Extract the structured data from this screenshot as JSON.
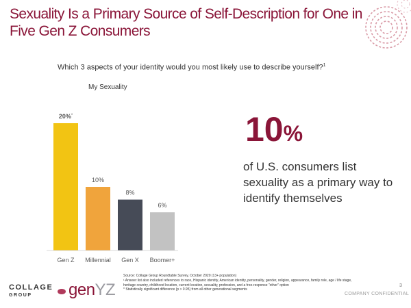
{
  "slide": {
    "title": "Sexuality Is a Primary Source of Self-Description for One in Five Gen Z Consumers",
    "question": "Which 3 aspects of your identity would you most likely use to describe yourself?",
    "question_sup": "1",
    "big_stat_number": "10",
    "big_stat_unit": "%",
    "big_stat_text": "of U.S. consumers list sexuality as a primary way to identify themselves",
    "page_number": "3",
    "confidential": "COMPANY CONFIDENTIAL"
  },
  "footnotes": [
    "Source: Collage Group Roundtable Survey, October 2020 (13+ population)",
    "¹ Answer list also included references to race, Hispanic identity, American identity, personality, gender, religion, appearance, family role, age / life stage, heritage country, childhood location, current location, sexuality, profession, and a free-response \"other\" option",
    "* Statistically significant difference (p > 0.95) from all other generational segments"
  ],
  "logos": {
    "collage_line1": "COLLAGE",
    "collage_line2": "GROUP",
    "genyz_gen": "gen",
    "genyz_yz": "YZ"
  },
  "colors": {
    "accent": "#8a1538",
    "genz": "#f2c413",
    "millennial": "#f0a43c",
    "genx": "#464b57",
    "boomer": "#c2c2c2"
  },
  "chart_data": {
    "type": "bar",
    "title": "My Sexuality",
    "categories": [
      "Gen Z",
      "Millennial",
      "Gen X",
      "Boomer+"
    ],
    "values": [
      20,
      10,
      8,
      6
    ],
    "value_labels": [
      "20%",
      "10%",
      "8%",
      "6%"
    ],
    "significance_markers": [
      "*",
      "",
      "",
      ""
    ],
    "ylim": [
      0,
      20
    ],
    "grid": false,
    "xlabel": "",
    "ylabel": ""
  }
}
